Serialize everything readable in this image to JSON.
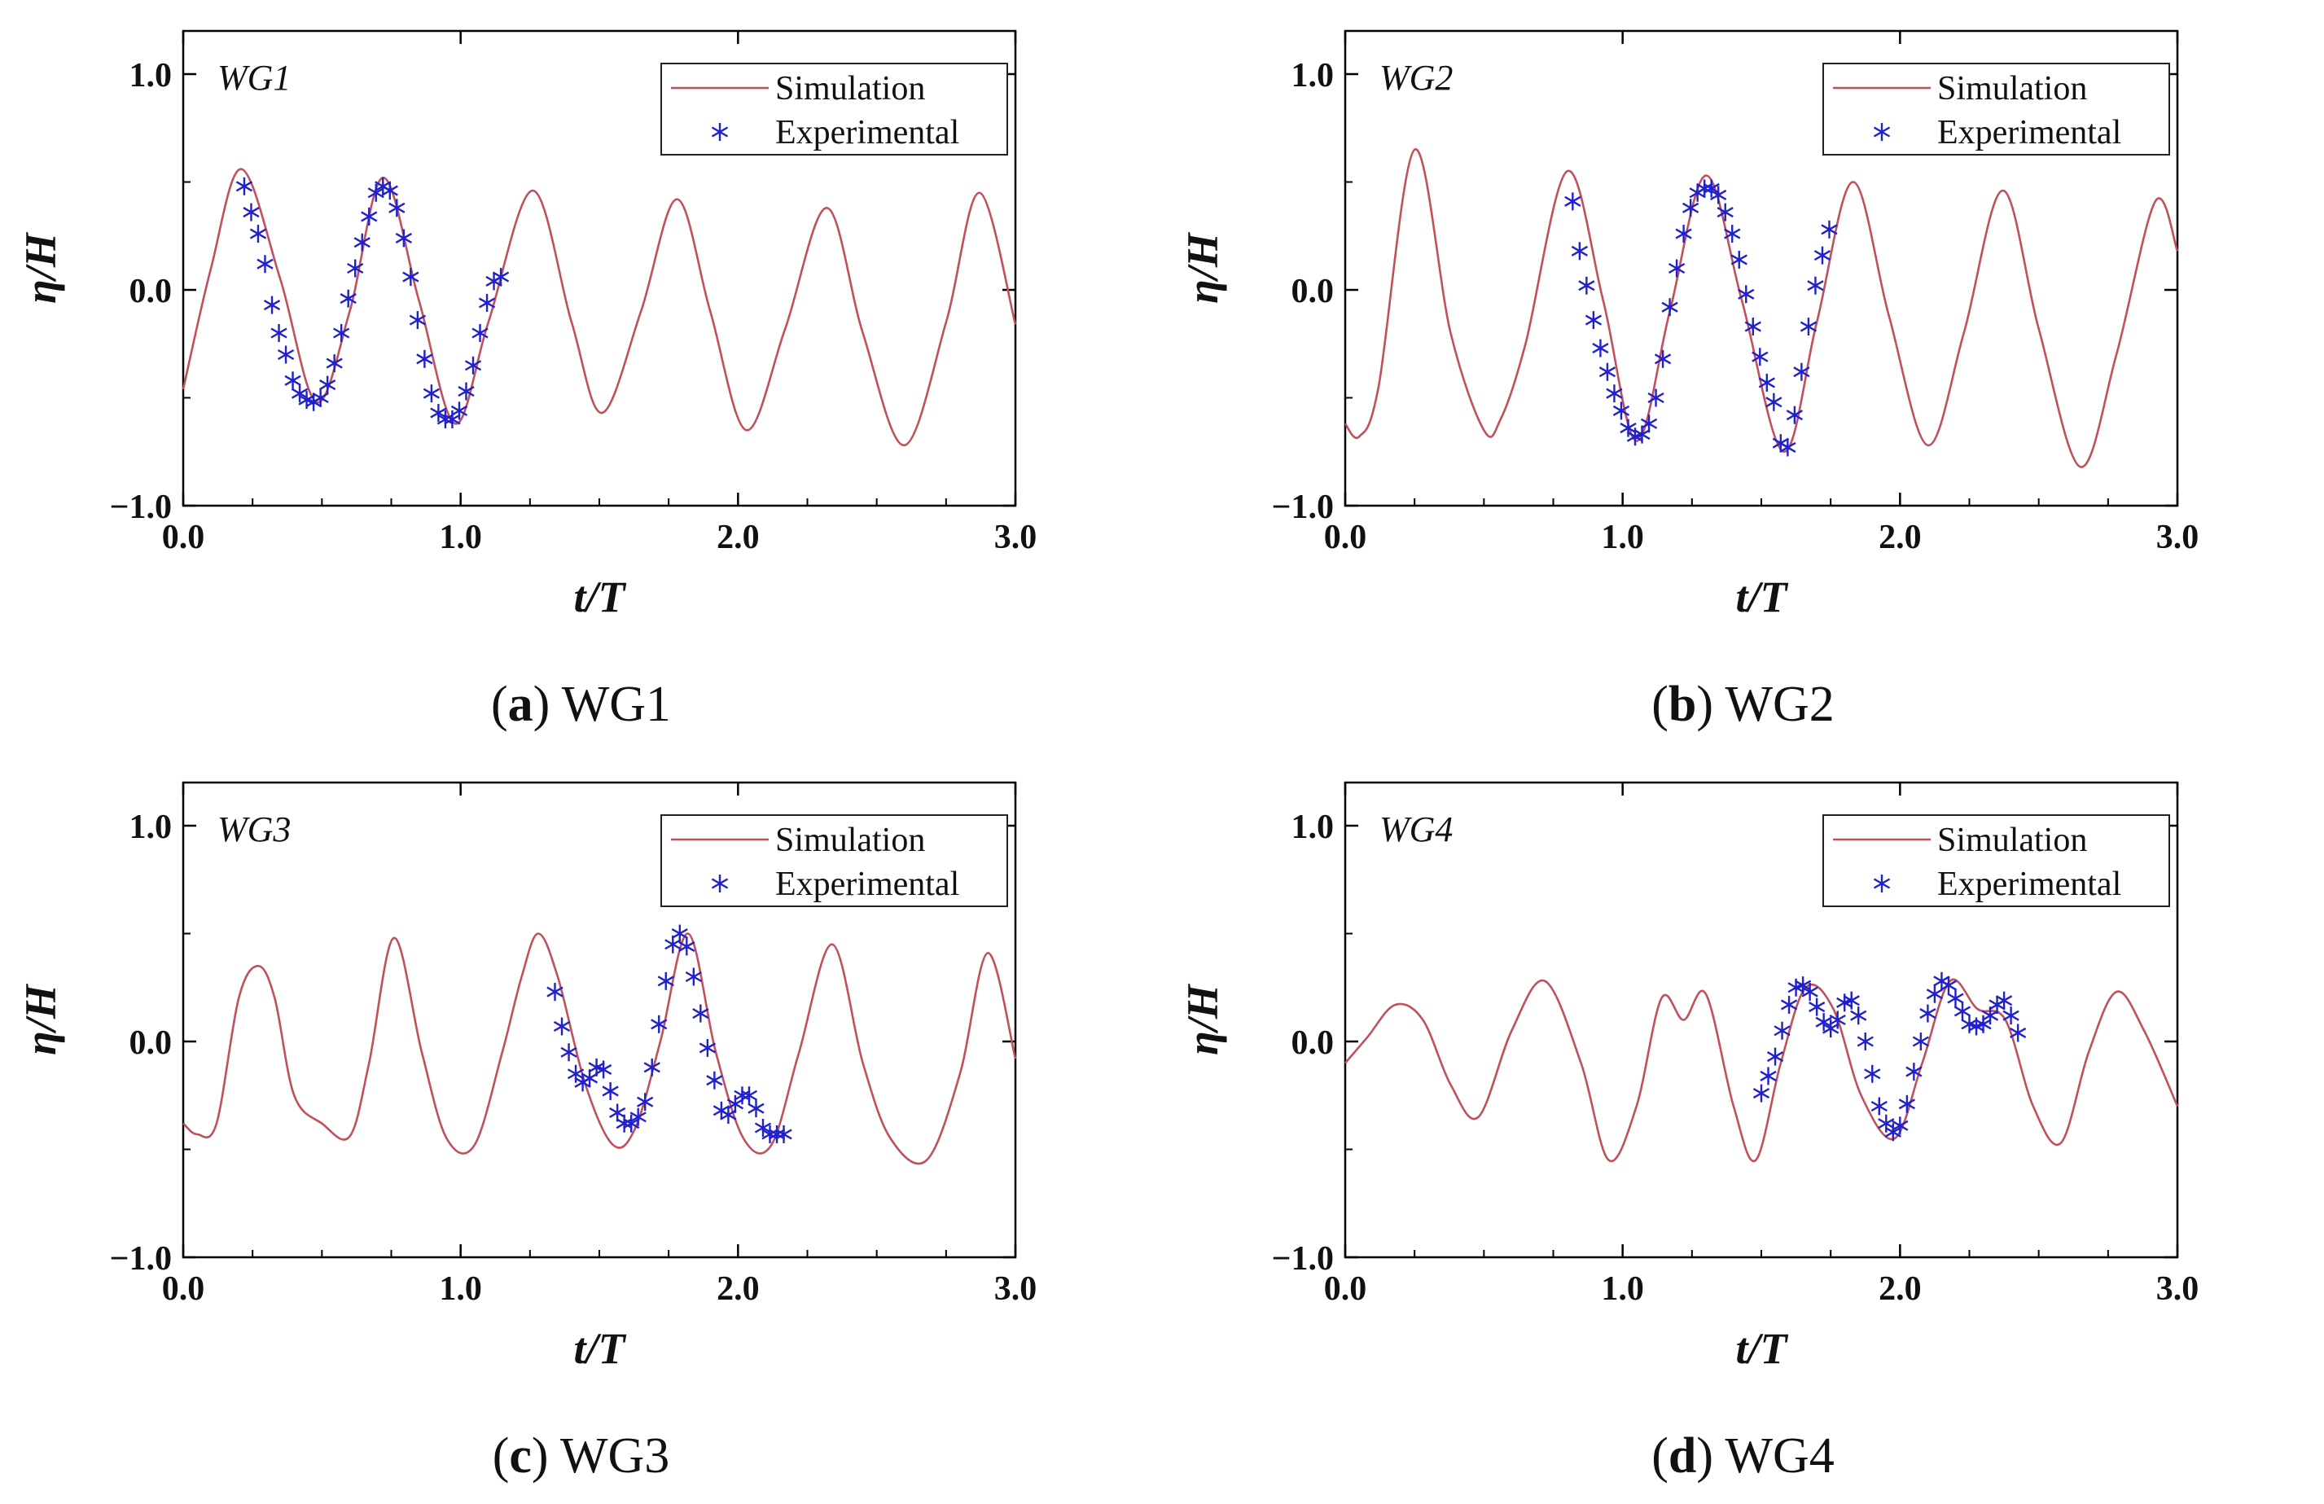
{
  "panels": [
    {
      "caption": {
        "letter": "a",
        "label": "WG1"
      },
      "chart_data": {
        "type": "line",
        "title": "",
        "annotation": "WG1",
        "xlabel": "t/T",
        "ylabel": "η/H",
        "xlim": [
          0,
          3
        ],
        "ylim": [
          -1,
          1.2
        ],
        "xticks": [
          "0.0",
          "1.0",
          "2.0",
          "3.0"
        ],
        "yticks": [
          "−1.0",
          "0.0",
          "1.0"
        ],
        "legend_position": "top-right",
        "series": [
          {
            "name": "Simulation",
            "kind": "line",
            "color": "#c0505a",
            "x": [
              0,
              0.1,
              0.21,
              0.35,
              0.48,
              0.6,
              0.72,
              0.85,
              0.98,
              1.1,
              1.26,
              1.4,
              1.51,
              1.65,
              1.78,
              1.9,
              2.03,
              2.17,
              2.32,
              2.45,
              2.6,
              2.75,
              2.87,
              3.0
            ],
            "y": [
              -0.46,
              0.1,
              0.56,
              0.05,
              -0.52,
              -0.1,
              0.52,
              -0.05,
              -0.62,
              -0.15,
              0.46,
              -0.15,
              -0.57,
              -0.1,
              0.42,
              -0.1,
              -0.65,
              -0.18,
              0.38,
              -0.2,
              -0.72,
              -0.15,
              0.45,
              -0.16
            ]
          },
          {
            "name": "Experimental",
            "kind": "scatter",
            "color": "#2020cc",
            "x": [
              0.22,
              0.245,
              0.27,
              0.295,
              0.32,
              0.345,
              0.37,
              0.395,
              0.42,
              0.445,
              0.47,
              0.495,
              0.52,
              0.545,
              0.57,
              0.595,
              0.62,
              0.645,
              0.67,
              0.695,
              0.72,
              0.745,
              0.77,
              0.795,
              0.82,
              0.845,
              0.87,
              0.895,
              0.92,
              0.945,
              0.97,
              0.995,
              1.02,
              1.045,
              1.07,
              1.095,
              1.12,
              1.145
            ],
            "y": [
              0.48,
              0.36,
              0.26,
              0.12,
              -0.07,
              -0.2,
              -0.3,
              -0.42,
              -0.48,
              -0.51,
              -0.52,
              -0.5,
              -0.44,
              -0.34,
              -0.2,
              -0.04,
              0.1,
              0.22,
              0.34,
              0.45,
              0.48,
              0.46,
              0.38,
              0.24,
              0.06,
              -0.14,
              -0.32,
              -0.48,
              -0.57,
              -0.6,
              -0.6,
              -0.56,
              -0.47,
              -0.35,
              -0.2,
              -0.06,
              0.04,
              0.06
            ]
          }
        ]
      }
    },
    {
      "caption": {
        "letter": "b",
        "label": "WG2"
      },
      "chart_data": {
        "type": "line",
        "title": "",
        "annotation": "WG2",
        "xlabel": "t/T",
        "ylabel": "η/H",
        "xlim": [
          0,
          3
        ],
        "ylim": [
          -1,
          1.2
        ],
        "xticks": [
          "0.0",
          "1.0",
          "2.0",
          "3.0"
        ],
        "yticks": [
          "−1.0",
          "0.0",
          "1.0"
        ],
        "legend_position": "top-right",
        "series": [
          {
            "name": "Simulation",
            "kind": "line",
            "color": "#c0505a",
            "x": [
              0,
              0.05,
              0.12,
              0.25,
              0.38,
              0.5,
              0.56,
              0.65,
              0.8,
              0.93,
              1.05,
              1.17,
              1.3,
              1.43,
              1.58,
              1.7,
              1.83,
              1.96,
              2.1,
              2.23,
              2.37,
              2.5,
              2.65,
              2.78,
              2.92,
              3.0
            ],
            "y": [
              -0.62,
              -0.68,
              -0.45,
              0.65,
              -0.2,
              -0.65,
              -0.6,
              -0.25,
              0.55,
              -0.05,
              -0.7,
              -0.1,
              0.53,
              -0.05,
              -0.75,
              -0.15,
              0.5,
              -0.12,
              -0.72,
              -0.2,
              0.46,
              -0.18,
              -0.82,
              -0.3,
              0.41,
              0.18
            ]
          },
          {
            "name": "Experimental",
            "kind": "scatter",
            "color": "#2020cc",
            "x": [
              0.82,
              0.845,
              0.87,
              0.895,
              0.92,
              0.945,
              0.97,
              0.995,
              1.02,
              1.045,
              1.07,
              1.095,
              1.12,
              1.145,
              1.17,
              1.195,
              1.22,
              1.245,
              1.27,
              1.295,
              1.32,
              1.345,
              1.37,
              1.395,
              1.42,
              1.445,
              1.47,
              1.495,
              1.52,
              1.545,
              1.57,
              1.595,
              1.62,
              1.645,
              1.67,
              1.695,
              1.72,
              1.745
            ],
            "y": [
              0.41,
              0.18,
              0.02,
              -0.14,
              -0.27,
              -0.38,
              -0.48,
              -0.56,
              -0.64,
              -0.68,
              -0.67,
              -0.62,
              -0.5,
              -0.32,
              -0.08,
              0.1,
              0.26,
              0.38,
              0.45,
              0.47,
              0.47,
              0.44,
              0.36,
              0.26,
              0.14,
              -0.02,
              -0.17,
              -0.31,
              -0.43,
              -0.52,
              -0.71,
              -0.73,
              -0.58,
              -0.38,
              -0.17,
              0.02,
              0.16,
              0.28
            ]
          }
        ]
      }
    },
    {
      "caption": {
        "letter": "c",
        "label": "WG3"
      },
      "chart_data": {
        "type": "line",
        "title": "",
        "annotation": "WG3",
        "xlabel": "t/T",
        "ylabel": "η/H",
        "xlim": [
          0,
          3
        ],
        "ylim": [
          -1,
          1.2
        ],
        "xticks": [
          "0.0",
          "1.0",
          "2.0",
          "3.0"
        ],
        "yticks": [
          "−1.0",
          "0.0",
          "1.0"
        ],
        "legend_position": "top-right",
        "series": [
          {
            "name": "Simulation",
            "kind": "line",
            "color": "#c0505a",
            "x": [
              0,
              0.05,
              0.12,
              0.2,
              0.27,
              0.33,
              0.4,
              0.5,
              0.6,
              0.67,
              0.76,
              0.86,
              0.95,
              1.05,
              1.15,
              1.22,
              1.28,
              1.35,
              1.45,
              1.55,
              1.63,
              1.72,
              1.82,
              1.92,
              2.02,
              2.12,
              2.22,
              2.34,
              2.45,
              2.55,
              2.68,
              2.8,
              2.9,
              3.0
            ],
            "y": [
              -0.38,
              -0.43,
              -0.38,
              0.2,
              0.35,
              0.2,
              -0.25,
              -0.38,
              -0.44,
              -0.1,
              0.48,
              -0.05,
              -0.45,
              -0.48,
              -0.05,
              0.3,
              0.5,
              0.3,
              -0.2,
              -0.48,
              -0.4,
              0.0,
              0.5,
              -0.05,
              -0.45,
              -0.48,
              -0.05,
              0.45,
              -0.1,
              -0.45,
              -0.55,
              -0.15,
              0.41,
              -0.08
            ]
          },
          {
            "name": "Experimental",
            "kind": "scatter",
            "color": "#2020cc",
            "x": [
              1.34,
              1.365,
              1.39,
              1.415,
              1.44,
              1.465,
              1.49,
              1.515,
              1.54,
              1.565,
              1.59,
              1.615,
              1.64,
              1.665,
              1.69,
              1.715,
              1.74,
              1.765,
              1.79,
              1.815,
              1.84,
              1.865,
              1.89,
              1.915,
              1.94,
              1.965,
              1.99,
              2.015,
              2.04,
              2.065,
              2.09,
              2.115,
              2.14,
              2.165
            ],
            "y": [
              0.23,
              0.07,
              -0.05,
              -0.15,
              -0.19,
              -0.17,
              -0.12,
              -0.13,
              -0.23,
              -0.33,
              -0.38,
              -0.38,
              -0.35,
              -0.28,
              -0.12,
              0.08,
              0.28,
              0.45,
              0.5,
              0.44,
              0.3,
              0.13,
              -0.03,
              -0.18,
              -0.32,
              -0.34,
              -0.29,
              -0.25,
              -0.25,
              -0.31,
              -0.4,
              -0.43,
              -0.43,
              -0.43
            ]
          }
        ]
      }
    },
    {
      "caption": {
        "letter": "d",
        "label": "WG4"
      },
      "chart_data": {
        "type": "line",
        "title": "",
        "annotation": "WG4",
        "xlabel": "t/T",
        "ylabel": "η/H",
        "xlim": [
          0,
          3
        ],
        "ylim": [
          -1,
          1.2
        ],
        "xticks": [
          "0.0",
          "1.0",
          "2.0",
          "3.0"
        ],
        "yticks": [
          "−1.0",
          "0.0",
          "1.0"
        ],
        "legend_position": "top-right",
        "series": [
          {
            "name": "Simulation",
            "kind": "line",
            "color": "#c0505a",
            "x": [
              0,
              0.08,
              0.18,
              0.28,
              0.38,
              0.48,
              0.6,
              0.72,
              0.85,
              0.95,
              1.05,
              1.14,
              1.22,
              1.3,
              1.4,
              1.48,
              1.57,
              1.66,
              1.76,
              1.86,
              1.98,
              2.08,
              2.18,
              2.28,
              2.38,
              2.48,
              2.58,
              2.68,
              2.78,
              2.88,
              3.0
            ],
            "y": [
              -0.1,
              0.02,
              0.17,
              0.1,
              -0.2,
              -0.35,
              0.05,
              0.28,
              -0.1,
              -0.55,
              -0.3,
              0.2,
              0.1,
              0.22,
              -0.3,
              -0.55,
              -0.1,
              0.25,
              0.15,
              -0.25,
              -0.45,
              -0.1,
              0.28,
              0.15,
              0.1,
              -0.3,
              -0.47,
              -0.05,
              0.23,
              0.05,
              -0.3
            ]
          },
          {
            "name": "Experimental",
            "kind": "scatter",
            "color": "#2020cc",
            "x": [
              1.5,
              1.525,
              1.55,
              1.575,
              1.6,
              1.625,
              1.65,
              1.675,
              1.7,
              1.725,
              1.75,
              1.775,
              1.8,
              1.825,
              1.85,
              1.875,
              1.9,
              1.925,
              1.95,
              1.975,
              2.0,
              2.025,
              2.05,
              2.075,
              2.1,
              2.125,
              2.15,
              2.175,
              2.2,
              2.225,
              2.25,
              2.275,
              2.3,
              2.325,
              2.35,
              2.375,
              2.4,
              2.425
            ],
            "y": [
              -0.24,
              -0.16,
              -0.07,
              0.05,
              0.17,
              0.25,
              0.26,
              0.23,
              0.16,
              0.09,
              0.06,
              0.1,
              0.18,
              0.19,
              0.12,
              0.0,
              -0.15,
              -0.3,
              -0.38,
              -0.42,
              -0.39,
              -0.29,
              -0.14,
              0.0,
              0.13,
              0.22,
              0.28,
              0.26,
              0.2,
              0.14,
              0.08,
              0.07,
              0.08,
              0.12,
              0.17,
              0.19,
              0.12,
              0.04
            ]
          }
        ]
      }
    }
  ]
}
